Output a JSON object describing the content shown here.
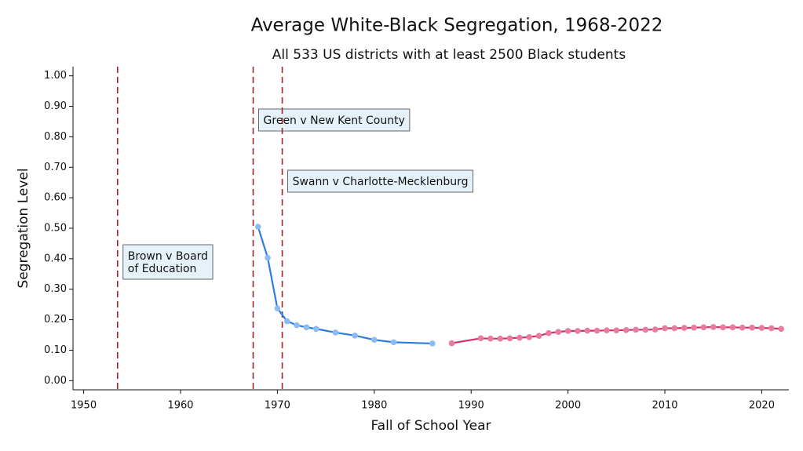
{
  "chart_data": {
    "type": "line",
    "title": "Average White-Black Segregation, 1968-2022",
    "subtitle": "All 533 US districts with at least 2500 Black students",
    "x_label": "Fall of School Year",
    "y_label": "Segregation Level",
    "xlim": [
      1948.9,
      2022.8
    ],
    "ylim": [
      -0.03,
      1.03
    ],
    "xticks": [
      1950,
      1960,
      1970,
      1980,
      1990,
      2000,
      2010,
      2020
    ],
    "yticks": [
      {
        "value": 0,
        "label": "0.00"
      },
      {
        "value": 0.1,
        "label": "0.10"
      },
      {
        "value": 0.2,
        "label": "0.20"
      },
      {
        "value": 0.3,
        "label": "0.30"
      },
      {
        "value": 0.4,
        "label": "0.40"
      },
      {
        "value": 0.5,
        "label": "0.50"
      },
      {
        "value": 0.6,
        "label": "0.60"
      },
      {
        "value": 0.7,
        "label": "0.70"
      },
      {
        "value": 0.8,
        "label": "0.80"
      },
      {
        "value": 0.9,
        "label": "0.90"
      },
      {
        "value": 1,
        "label": "1.00"
      }
    ],
    "series": [
      {
        "color": "#2b7de3",
        "point_color": "#8cbcf2",
        "x": [
          1968,
          1969,
          1970,
          1971,
          1972,
          1973,
          1974,
          1976,
          1978,
          1980,
          1982,
          1986
        ],
        "values": [
          0.505,
          0.403,
          0.237,
          0.195,
          0.182,
          0.175,
          0.17,
          0.158,
          0.148,
          0.134,
          0.126,
          0.122
        ]
      },
      {
        "color": "#d0306a",
        "point_color": "#e87ca0",
        "x": [
          1988,
          1991,
          1992,
          1993,
          1994,
          1995,
          1996,
          1997,
          1998,
          1999,
          2000,
          2001,
          2002,
          2003,
          2004,
          2005,
          2006,
          2007,
          2008,
          2009,
          2010,
          2011,
          2012,
          2013,
          2014,
          2015,
          2016,
          2017,
          2018,
          2019,
          2020,
          2021,
          2022
        ],
        "values": [
          0.123,
          0.139,
          0.138,
          0.138,
          0.139,
          0.141,
          0.143,
          0.147,
          0.156,
          0.16,
          0.163,
          0.163,
          0.164,
          0.164,
          0.165,
          0.165,
          0.166,
          0.167,
          0.167,
          0.168,
          0.172,
          0.172,
          0.173,
          0.174,
          0.175,
          0.176,
          0.175,
          0.175,
          0.174,
          0.174,
          0.173,
          0.172,
          0.17
        ]
      }
    ],
    "annotations": [
      {
        "x": 1953.5,
        "lines": [
          "Brown v Board",
          "of Education"
        ]
      },
      {
        "x": 1967.5,
        "lines": [
          "Green v New Kent County"
        ]
      },
      {
        "x": 1970.5,
        "lines": [
          "Swann v Charlotte-Mecklenburg"
        ]
      }
    ],
    "annotation_line_color": "#a3222a",
    "annotation_box_color": "#e6f2fa"
  }
}
